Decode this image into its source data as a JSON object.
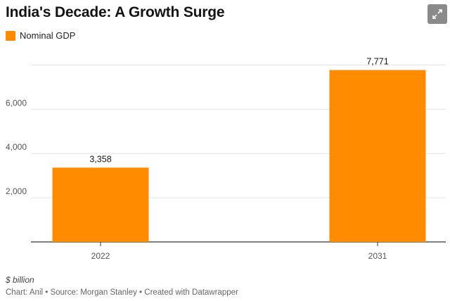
{
  "header": {
    "title": "India's Decade: A Growth Surge",
    "expand_icon": "expand-arrows-icon"
  },
  "legend": {
    "label": "Nominal GDP",
    "color": "#ff8c00"
  },
  "chart_data": {
    "type": "bar",
    "categories": [
      "2022",
      "2031"
    ],
    "series": [
      {
        "name": "Nominal GDP",
        "values": [
          3358,
          7771
        ],
        "color": "#ff8c00"
      }
    ],
    "data_labels": [
      "3,358",
      "7,771"
    ],
    "y_ticks": [
      2000,
      4000,
      6000
    ],
    "y_tick_labels": [
      "2,000",
      "4,000",
      "6,000"
    ],
    "ylim": [
      0,
      8000
    ],
    "grid": true,
    "legend_position": "top-left",
    "unit": "$ billion"
  },
  "footer": {
    "unit_note": "$ billion",
    "credit": "Chart: Anil • Source: Morgan Stanley • Created with Datawrapper"
  }
}
